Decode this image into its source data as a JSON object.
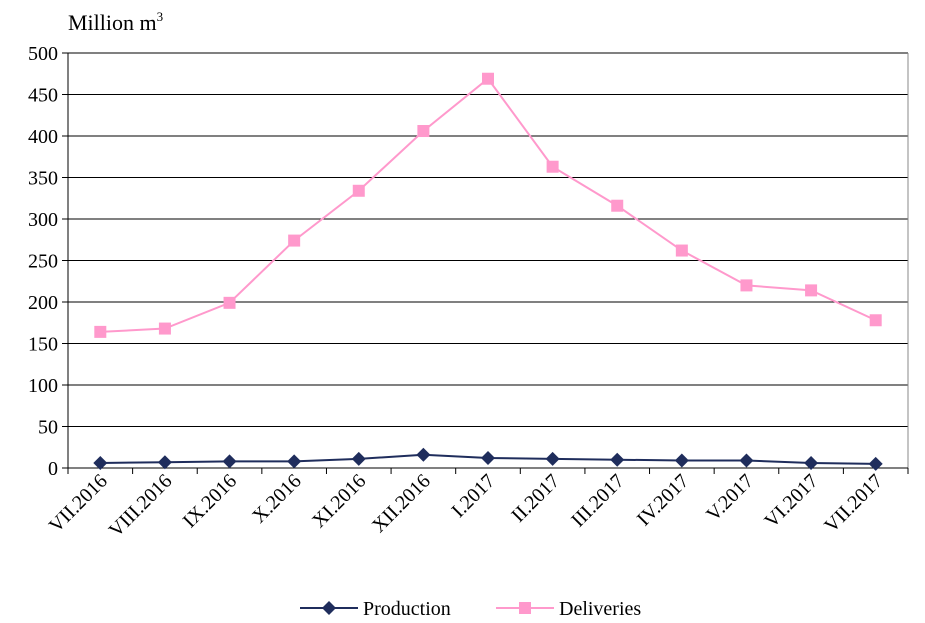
{
  "chart_data": {
    "type": "line",
    "ylabel": "Million m",
    "ylabel_superscript": "3",
    "ylim": [
      0,
      500
    ],
    "ytick_step": 50,
    "grid": "horizontal",
    "legend_position": "bottom",
    "categories": [
      "VII.2016",
      "VIII.2016",
      "IX.2016",
      "X.2016",
      "XI.2016",
      "XII.2016",
      "I.2017",
      "II.2017",
      "III.2017",
      "IV.2017",
      "V.2017",
      "VI.2017",
      "VII.2017"
    ],
    "series": [
      {
        "name": "Production",
        "color": "#1F2D5C",
        "marker": "diamond",
        "values": [
          6,
          7,
          8,
          8,
          11,
          16,
          12,
          11,
          10,
          9,
          9,
          6,
          5
        ]
      },
      {
        "name": "Deliveries",
        "color": "#FF99CC",
        "marker": "square",
        "values": [
          164,
          168,
          199,
          274,
          334,
          406,
          469,
          363,
          316,
          262,
          220,
          214,
          178
        ]
      }
    ]
  }
}
